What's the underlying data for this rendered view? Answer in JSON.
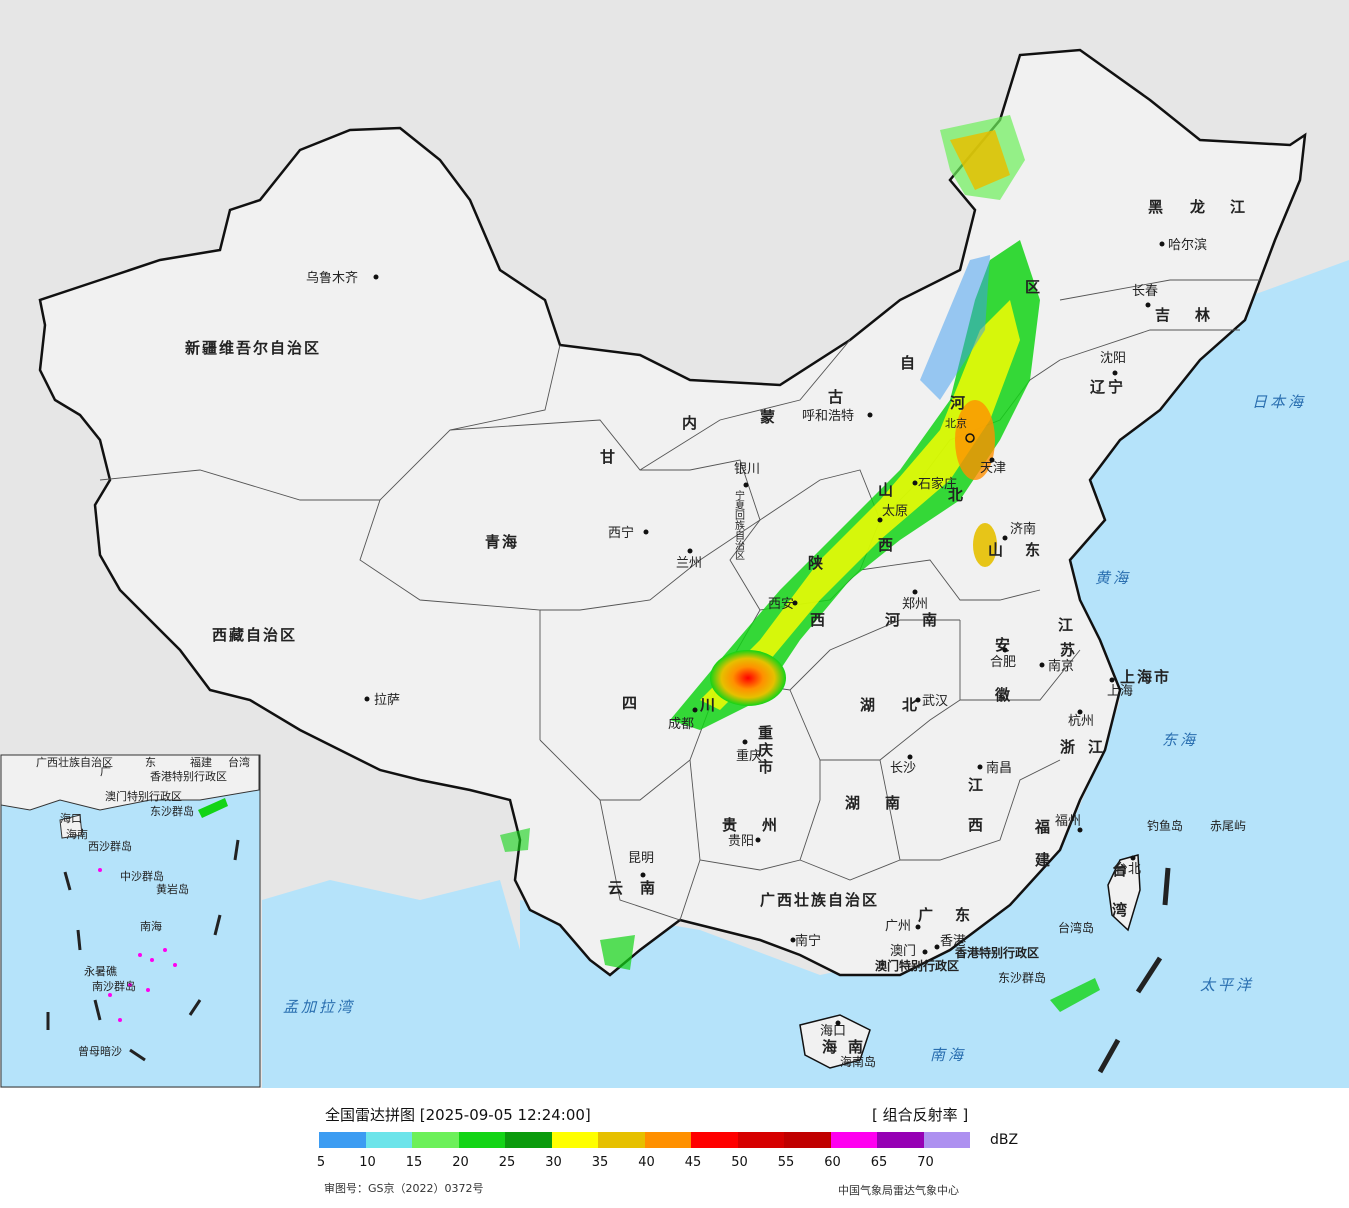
{
  "legend": {
    "title": "全国雷达拼图 [2025-09-05 12:24:00]",
    "product": "[ 组合反射率 ]",
    "unit": "dBZ",
    "ticks": [
      "5",
      "10",
      "15",
      "20",
      "25",
      "30",
      "35",
      "40",
      "45",
      "50",
      "55",
      "60",
      "65",
      "70"
    ],
    "colors": [
      "#3c9cf2",
      "#6ce4ea",
      "#6cf05a",
      "#13d416",
      "#0a9a0c",
      "#ffff00",
      "#e6c000",
      "#ff9000",
      "#ff0000",
      "#d60000",
      "#c00000",
      "#ff00f0",
      "#9600b4",
      "#ad90f0"
    ],
    "review_no": "审图号：GS京（2022）0372号",
    "agency": "中国气象局雷达气象中心"
  },
  "map": {
    "colors": {
      "land": "#f1f1f1",
      "sea": "#b5e3fa",
      "outside": "#e6e6e6",
      "border": "#111111"
    },
    "provinces": [
      "新疆维吾尔自治区",
      "西藏自治区",
      "青海",
      "甘",
      "内",
      "蒙",
      "古",
      "自",
      "区",
      "黑",
      "龙",
      "江",
      "吉",
      "林",
      "辽",
      "宁",
      "宁夏回族自治区",
      "陕",
      "西",
      "山",
      "西",
      "河",
      "北",
      "山",
      "东",
      "河",
      "南",
      "四",
      "川",
      "重庆市",
      "湖",
      "北",
      "湖",
      "南",
      "安",
      "徽",
      "江",
      "苏",
      "上海市",
      "浙",
      "江",
      "江",
      "西",
      "福",
      "建",
      "贵",
      "州",
      "云",
      "南",
      "广西壮族自治区",
      "广",
      "东",
      "海",
      "南",
      "台",
      "湾",
      "香港特别行政区",
      "澳门特别行政区"
    ],
    "cities": [
      "乌鲁木齐",
      "拉萨",
      "西宁",
      "兰州",
      "银川",
      "呼和浩特",
      "哈尔滨",
      "长春",
      "沈阳",
      "北京",
      "天津",
      "石家庄",
      "太原",
      "济南",
      "郑州",
      "西安",
      "成都",
      "重庆",
      "武汉",
      "合肥",
      "南京",
      "上海",
      "杭州",
      "南昌",
      "长沙",
      "福州",
      "台北",
      "贵阳",
      "昆明",
      "南宁",
      "广州",
      "澳门",
      "香港",
      "海口"
    ],
    "seas": [
      "日本海",
      "黄海",
      "东海",
      "太平洋",
      "南海",
      "孟加拉湾"
    ],
    "islands": [
      "钓鱼岛",
      "赤尾屿",
      "台湾岛",
      "东沙群岛",
      "海南岛"
    ],
    "inset": {
      "labels": [
        "广西壮族自治区",
        "广",
        "东",
        "福建",
        "台湾",
        "香港特别行政区",
        "澳门特别行政区",
        "东沙群岛",
        "海口",
        "海南",
        "西沙群岛",
        "中沙群岛",
        "黄岩岛",
        "南海",
        "永暑礁",
        "南沙群岛",
        "曾母暗沙"
      ]
    }
  }
}
